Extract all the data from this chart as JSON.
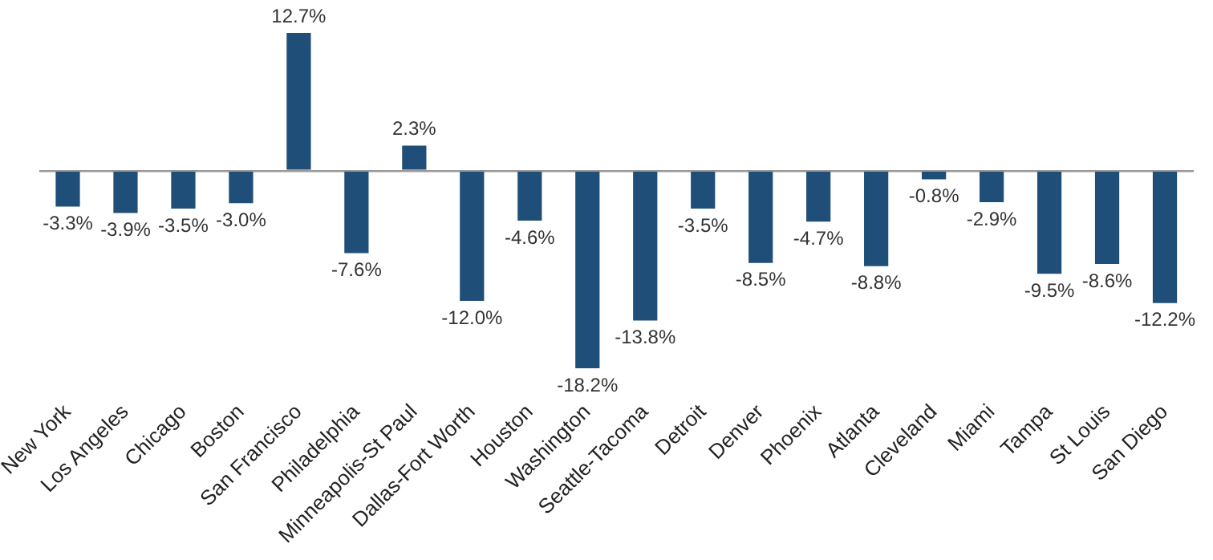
{
  "chart_data": {
    "type": "bar",
    "categories": [
      "New York",
      "Los Angeles",
      "Chicago",
      "Boston",
      "San Francisco",
      "Philadelphia",
      "Minneapolis-St Paul",
      "Dallas-Fort Worth",
      "Houston",
      "Washington",
      "Seattle-Tacoma",
      "Detroit",
      "Denver",
      "Phoenix",
      "Atlanta",
      "Cleveland",
      "Miami",
      "Tampa",
      "St Louis",
      "San Diego"
    ],
    "values": [
      -3.3,
      -3.9,
      -3.5,
      -3.0,
      12.7,
      -7.6,
      2.3,
      -12.0,
      -4.6,
      -18.2,
      -13.8,
      -3.5,
      -8.5,
      -4.7,
      -8.8,
      -0.8,
      -2.9,
      -9.5,
      -8.6,
      -12.2
    ],
    "value_labels": [
      "-3.3%",
      "-3.9%",
      "-3.5%",
      "-3.0%",
      "12.7%",
      "-7.6%",
      "2.3%",
      "-12.0%",
      "-4.6%",
      "-18.2%",
      "-13.8%",
      "-3.5%",
      "-8.5%",
      "-4.7%",
      "-8.8%",
      "-0.8%",
      "-2.9%",
      "-9.5%",
      "-8.6%",
      "-12.2%"
    ],
    "color": "#1f4e79",
    "grid": false,
    "legend": false
  }
}
